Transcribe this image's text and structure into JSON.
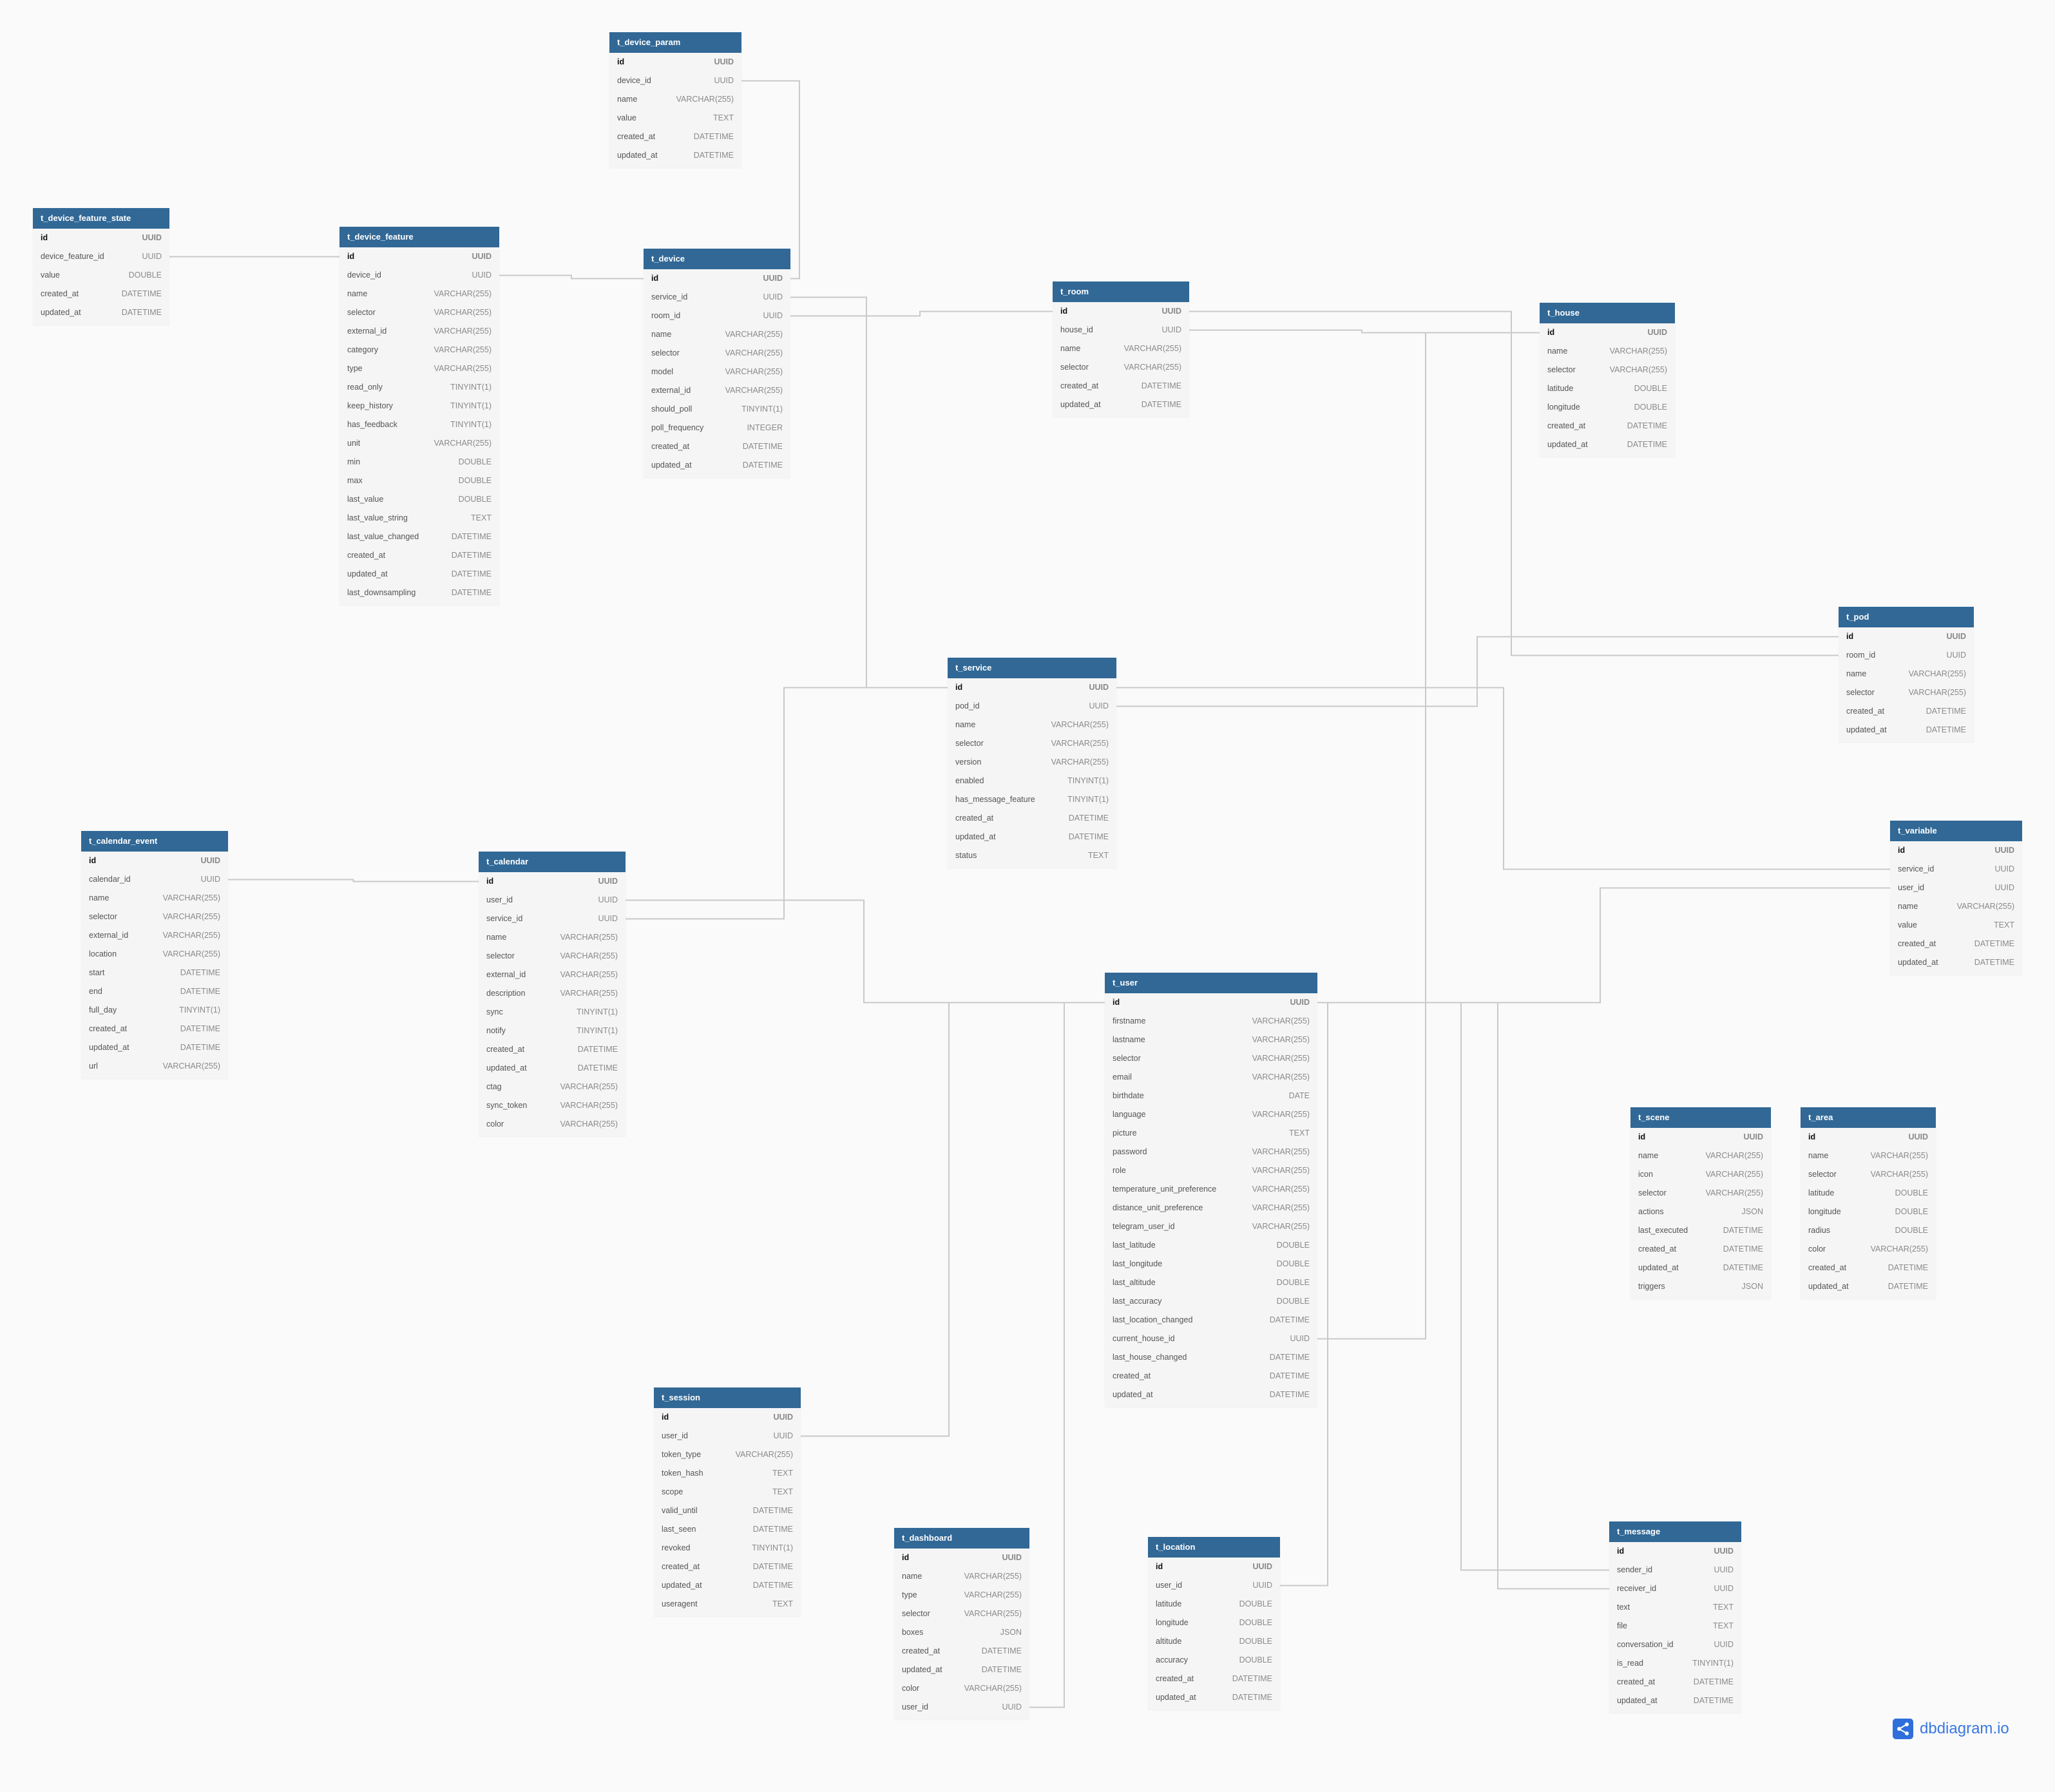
{
  "colors": {
    "header": "#316896",
    "body": "#f5f5f5",
    "background": "#fafafb",
    "line": "#c9c9c9",
    "brand": "#2f6fdc"
  },
  "brand": {
    "text": "dbdiagram.io",
    "icon": "share-nodes-icon"
  },
  "tables": [
    {
      "name": "t_device_param",
      "fields": [
        [
          "id",
          "UUID"
        ],
        [
          "device_id",
          "UUID"
        ],
        [
          "name",
          "VARCHAR(255)"
        ],
        [
          "value",
          "TEXT"
        ],
        [
          "created_at",
          "DATETIME"
        ],
        [
          "updated_at",
          "DATETIME"
        ]
      ]
    },
    {
      "name": "t_device_feature_state",
      "fields": [
        [
          "id",
          "UUID"
        ],
        [
          "device_feature_id",
          "UUID"
        ],
        [
          "value",
          "DOUBLE"
        ],
        [
          "created_at",
          "DATETIME"
        ],
        [
          "updated_at",
          "DATETIME"
        ]
      ]
    },
    {
      "name": "t_device_feature",
      "fields": [
        [
          "id",
          "UUID"
        ],
        [
          "device_id",
          "UUID"
        ],
        [
          "name",
          "VARCHAR(255)"
        ],
        [
          "selector",
          "VARCHAR(255)"
        ],
        [
          "external_id",
          "VARCHAR(255)"
        ],
        [
          "category",
          "VARCHAR(255)"
        ],
        [
          "type",
          "VARCHAR(255)"
        ],
        [
          "read_only",
          "TINYINT(1)"
        ],
        [
          "keep_history",
          "TINYINT(1)"
        ],
        [
          "has_feedback",
          "TINYINT(1)"
        ],
        [
          "unit",
          "VARCHAR(255)"
        ],
        [
          "min",
          "DOUBLE"
        ],
        [
          "max",
          "DOUBLE"
        ],
        [
          "last_value",
          "DOUBLE"
        ],
        [
          "last_value_string",
          "TEXT"
        ],
        [
          "last_value_changed",
          "DATETIME"
        ],
        [
          "created_at",
          "DATETIME"
        ],
        [
          "updated_at",
          "DATETIME"
        ],
        [
          "last_downsampling",
          "DATETIME"
        ]
      ]
    },
    {
      "name": "t_device",
      "fields": [
        [
          "id",
          "UUID"
        ],
        [
          "service_id",
          "UUID"
        ],
        [
          "room_id",
          "UUID"
        ],
        [
          "name",
          "VARCHAR(255)"
        ],
        [
          "selector",
          "VARCHAR(255)"
        ],
        [
          "model",
          "VARCHAR(255)"
        ],
        [
          "external_id",
          "VARCHAR(255)"
        ],
        [
          "should_poll",
          "TINYINT(1)"
        ],
        [
          "poll_frequency",
          "INTEGER"
        ],
        [
          "created_at",
          "DATETIME"
        ],
        [
          "updated_at",
          "DATETIME"
        ]
      ]
    },
    {
      "name": "t_room",
      "fields": [
        [
          "id",
          "UUID"
        ],
        [
          "house_id",
          "UUID"
        ],
        [
          "name",
          "VARCHAR(255)"
        ],
        [
          "selector",
          "VARCHAR(255)"
        ],
        [
          "created_at",
          "DATETIME"
        ],
        [
          "updated_at",
          "DATETIME"
        ]
      ]
    },
    {
      "name": "t_house",
      "fields": [
        [
          "id",
          "UUID"
        ],
        [
          "name",
          "VARCHAR(255)"
        ],
        [
          "selector",
          "VARCHAR(255)"
        ],
        [
          "latitude",
          "DOUBLE"
        ],
        [
          "longitude",
          "DOUBLE"
        ],
        [
          "created_at",
          "DATETIME"
        ],
        [
          "updated_at",
          "DATETIME"
        ]
      ]
    },
    {
      "name": "t_pod",
      "fields": [
        [
          "id",
          "UUID"
        ],
        [
          "room_id",
          "UUID"
        ],
        [
          "name",
          "VARCHAR(255)"
        ],
        [
          "selector",
          "VARCHAR(255)"
        ],
        [
          "created_at",
          "DATETIME"
        ],
        [
          "updated_at",
          "DATETIME"
        ]
      ]
    },
    {
      "name": "t_service",
      "fields": [
        [
          "id",
          "UUID"
        ],
        [
          "pod_id",
          "UUID"
        ],
        [
          "name",
          "VARCHAR(255)"
        ],
        [
          "selector",
          "VARCHAR(255)"
        ],
        [
          "version",
          "VARCHAR(255)"
        ],
        [
          "enabled",
          "TINYINT(1)"
        ],
        [
          "has_message_feature",
          "TINYINT(1)"
        ],
        [
          "created_at",
          "DATETIME"
        ],
        [
          "updated_at",
          "DATETIME"
        ],
        [
          "status",
          "TEXT"
        ]
      ]
    },
    {
      "name": "t_variable",
      "fields": [
        [
          "id",
          "UUID"
        ],
        [
          "service_id",
          "UUID"
        ],
        [
          "user_id",
          "UUID"
        ],
        [
          "name",
          "VARCHAR(255)"
        ],
        [
          "value",
          "TEXT"
        ],
        [
          "created_at",
          "DATETIME"
        ],
        [
          "updated_at",
          "DATETIME"
        ]
      ]
    },
    {
      "name": "t_calendar_event",
      "fields": [
        [
          "id",
          "UUID"
        ],
        [
          "calendar_id",
          "UUID"
        ],
        [
          "name",
          "VARCHAR(255)"
        ],
        [
          "selector",
          "VARCHAR(255)"
        ],
        [
          "external_id",
          "VARCHAR(255)"
        ],
        [
          "location",
          "VARCHAR(255)"
        ],
        [
          "start",
          "DATETIME"
        ],
        [
          "end",
          "DATETIME"
        ],
        [
          "full_day",
          "TINYINT(1)"
        ],
        [
          "created_at",
          "DATETIME"
        ],
        [
          "updated_at",
          "DATETIME"
        ],
        [
          "url",
          "VARCHAR(255)"
        ]
      ]
    },
    {
      "name": "t_calendar",
      "fields": [
        [
          "id",
          "UUID"
        ],
        [
          "user_id",
          "UUID"
        ],
        [
          "service_id",
          "UUID"
        ],
        [
          "name",
          "VARCHAR(255)"
        ],
        [
          "selector",
          "VARCHAR(255)"
        ],
        [
          "external_id",
          "VARCHAR(255)"
        ],
        [
          "description",
          "VARCHAR(255)"
        ],
        [
          "sync",
          "TINYINT(1)"
        ],
        [
          "notify",
          "TINYINT(1)"
        ],
        [
          "created_at",
          "DATETIME"
        ],
        [
          "updated_at",
          "DATETIME"
        ],
        [
          "ctag",
          "VARCHAR(255)"
        ],
        [
          "sync_token",
          "VARCHAR(255)"
        ],
        [
          "color",
          "VARCHAR(255)"
        ]
      ]
    },
    {
      "name": "t_user",
      "fields": [
        [
          "id",
          "UUID"
        ],
        [
          "firstname",
          "VARCHAR(255)"
        ],
        [
          "lastname",
          "VARCHAR(255)"
        ],
        [
          "selector",
          "VARCHAR(255)"
        ],
        [
          "email",
          "VARCHAR(255)"
        ],
        [
          "birthdate",
          "DATE"
        ],
        [
          "language",
          "VARCHAR(255)"
        ],
        [
          "picture",
          "TEXT"
        ],
        [
          "password",
          "VARCHAR(255)"
        ],
        [
          "role",
          "VARCHAR(255)"
        ],
        [
          "temperature_unit_preference",
          "VARCHAR(255)"
        ],
        [
          "distance_unit_preference",
          "VARCHAR(255)"
        ],
        [
          "telegram_user_id",
          "VARCHAR(255)"
        ],
        [
          "last_latitude",
          "DOUBLE"
        ],
        [
          "last_longitude",
          "DOUBLE"
        ],
        [
          "last_altitude",
          "DOUBLE"
        ],
        [
          "last_accuracy",
          "DOUBLE"
        ],
        [
          "last_location_changed",
          "DATETIME"
        ],
        [
          "current_house_id",
          "UUID"
        ],
        [
          "last_house_changed",
          "DATETIME"
        ],
        [
          "created_at",
          "DATETIME"
        ],
        [
          "updated_at",
          "DATETIME"
        ]
      ]
    },
    {
      "name": "t_scene",
      "fields": [
        [
          "id",
          "UUID"
        ],
        [
          "name",
          "VARCHAR(255)"
        ],
        [
          "icon",
          "VARCHAR(255)"
        ],
        [
          "selector",
          "VARCHAR(255)"
        ],
        [
          "actions",
          "JSON"
        ],
        [
          "last_executed",
          "DATETIME"
        ],
        [
          "created_at",
          "DATETIME"
        ],
        [
          "updated_at",
          "DATETIME"
        ],
        [
          "triggers",
          "JSON"
        ]
      ]
    },
    {
      "name": "t_area",
      "fields": [
        [
          "id",
          "UUID"
        ],
        [
          "name",
          "VARCHAR(255)"
        ],
        [
          "selector",
          "VARCHAR(255)"
        ],
        [
          "latitude",
          "DOUBLE"
        ],
        [
          "longitude",
          "DOUBLE"
        ],
        [
          "radius",
          "DOUBLE"
        ],
        [
          "color",
          "VARCHAR(255)"
        ],
        [
          "created_at",
          "DATETIME"
        ],
        [
          "updated_at",
          "DATETIME"
        ]
      ]
    },
    {
      "name": "t_session",
      "fields": [
        [
          "id",
          "UUID"
        ],
        [
          "user_id",
          "UUID"
        ],
        [
          "token_type",
          "VARCHAR(255)"
        ],
        [
          "token_hash",
          "TEXT"
        ],
        [
          "scope",
          "TEXT"
        ],
        [
          "valid_until",
          "DATETIME"
        ],
        [
          "last_seen",
          "DATETIME"
        ],
        [
          "revoked",
          "TINYINT(1)"
        ],
        [
          "created_at",
          "DATETIME"
        ],
        [
          "updated_at",
          "DATETIME"
        ],
        [
          "useragent",
          "TEXT"
        ]
      ]
    },
    {
      "name": "t_dashboard",
      "fields": [
        [
          "id",
          "UUID"
        ],
        [
          "name",
          "VARCHAR(255)"
        ],
        [
          "type",
          "VARCHAR(255)"
        ],
        [
          "selector",
          "VARCHAR(255)"
        ],
        [
          "boxes",
          "JSON"
        ],
        [
          "created_at",
          "DATETIME"
        ],
        [
          "updated_at",
          "DATETIME"
        ],
        [
          "color",
          "VARCHAR(255)"
        ],
        [
          "user_id",
          "UUID"
        ]
      ]
    },
    {
      "name": "t_location",
      "fields": [
        [
          "id",
          "UUID"
        ],
        [
          "user_id",
          "UUID"
        ],
        [
          "latitude",
          "DOUBLE"
        ],
        [
          "longitude",
          "DOUBLE"
        ],
        [
          "altitude",
          "DOUBLE"
        ],
        [
          "accuracy",
          "DOUBLE"
        ],
        [
          "created_at",
          "DATETIME"
        ],
        [
          "updated_at",
          "DATETIME"
        ]
      ]
    },
    {
      "name": "t_message",
      "fields": [
        [
          "id",
          "UUID"
        ],
        [
          "sender_id",
          "UUID"
        ],
        [
          "receiver_id",
          "UUID"
        ],
        [
          "text",
          "TEXT"
        ],
        [
          "file",
          "TEXT"
        ],
        [
          "conversation_id",
          "UUID"
        ],
        [
          "is_read",
          "TINYINT(1)"
        ],
        [
          "created_at",
          "DATETIME"
        ],
        [
          "updated_at",
          "DATETIME"
        ]
      ]
    }
  ],
  "refs": [
    [
      "t_device_param.device_id",
      "t_device.id"
    ],
    [
      "t_device_feature_state.device_feature_id",
      "t_device_feature.id"
    ],
    [
      "t_device_feature.device_id",
      "t_device.id"
    ],
    [
      "t_device.service_id",
      "t_service.id"
    ],
    [
      "t_device.room_id",
      "t_room.id"
    ],
    [
      "t_room.house_id",
      "t_house.id"
    ],
    [
      "t_pod.room_id",
      "t_room.id"
    ],
    [
      "t_service.pod_id",
      "t_pod.id"
    ],
    [
      "t_variable.service_id",
      "t_service.id"
    ],
    [
      "t_variable.user_id",
      "t_user.id"
    ],
    [
      "t_calendar_event.calendar_id",
      "t_calendar.id"
    ],
    [
      "t_calendar.service_id",
      "t_service.id"
    ],
    [
      "t_calendar.user_id",
      "t_user.id"
    ],
    [
      "t_session.user_id",
      "t_user.id"
    ],
    [
      "t_dashboard.user_id",
      "t_user.id"
    ],
    [
      "t_location.user_id",
      "t_user.id"
    ],
    [
      "t_user.current_house_id",
      "t_house.id"
    ],
    [
      "t_message.sender_id",
      "t_user.id"
    ],
    [
      "t_message.receiver_id",
      "t_user.id"
    ]
  ]
}
